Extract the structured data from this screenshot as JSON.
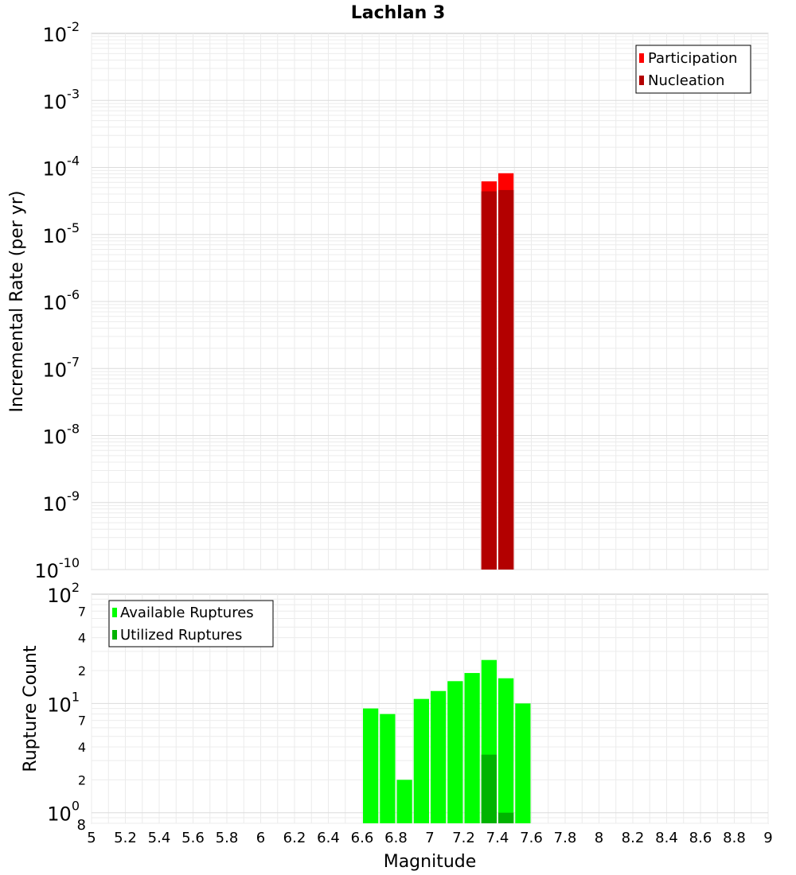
{
  "chart_data": [
    {
      "type": "bar",
      "title": "Lachlan 3",
      "xlabel": "",
      "ylabel": "Incremental Rate (per yr)",
      "yscale": "log",
      "ylim": [
        1e-10,
        0.01
      ],
      "xlim": [
        5,
        9
      ],
      "grid": true,
      "legend_position": "top-right",
      "y_tick_labels": [
        {
          "base": "10",
          "exp": "-2"
        },
        {
          "base": "10",
          "exp": "-3"
        },
        {
          "base": "10",
          "exp": "-4"
        },
        {
          "base": "10",
          "exp": "-5"
        },
        {
          "base": "10",
          "exp": "-6"
        },
        {
          "base": "10",
          "exp": "-7"
        },
        {
          "base": "10",
          "exp": "-8"
        },
        {
          "base": "10",
          "exp": "-9"
        },
        {
          "base": "10",
          "exp": "-10"
        }
      ],
      "x": [
        7.35,
        7.45
      ],
      "series": [
        {
          "name": "Participation",
          "color": "#ff0000",
          "values": [
            6.2e-05,
            8.2e-05
          ]
        },
        {
          "name": "Nucleation",
          "color": "#b30000",
          "values": [
            4.4e-05,
            4.6e-05
          ]
        }
      ]
    },
    {
      "type": "bar",
      "title": "",
      "xlabel": "Magnitude",
      "ylabel": "Rupture Count",
      "yscale": "log",
      "ylim": [
        0.8,
        100
      ],
      "xlim": [
        5,
        9
      ],
      "grid": true,
      "legend_position": "top-left",
      "x_tick_labels": [
        "5",
        "5.2",
        "5.4",
        "5.6",
        "5.8",
        "6",
        "6.2",
        "6.4",
        "6.6",
        "6.8",
        "7",
        "7.2",
        "7.4",
        "7.6",
        "7.8",
        "8",
        "8.2",
        "8.4",
        "8.6",
        "8.8",
        "9"
      ],
      "y_major_ticks": [
        {
          "value": 100,
          "base": "10",
          "exp": "2"
        },
        {
          "value": 10,
          "base": "10",
          "exp": "1"
        },
        {
          "value": 1,
          "base": "10",
          "exp": "0"
        }
      ],
      "y_minor_ticks": [
        {
          "value": 70,
          "label": "7"
        },
        {
          "value": 40,
          "label": "4"
        },
        {
          "value": 20,
          "label": "2"
        },
        {
          "value": 7,
          "label": "7"
        },
        {
          "value": 4,
          "label": "4"
        },
        {
          "value": 2,
          "label": "2"
        }
      ],
      "y_bottom_label": {
        "value": 0.8,
        "label": "8"
      },
      "x": [
        6.65,
        6.75,
        6.85,
        6.95,
        7.05,
        7.15,
        7.25,
        7.35,
        7.45,
        7.55
      ],
      "series": [
        {
          "name": "Available Ruptures",
          "color": "#00ff00",
          "values": [
            9,
            8,
            2,
            11,
            13,
            16,
            19,
            25,
            17,
            10
          ]
        },
        {
          "name": "Utilized Ruptures",
          "color": "#00b300",
          "values": [
            0,
            0,
            0,
            0,
            0,
            0,
            0,
            3.4,
            1,
            0
          ]
        }
      ]
    }
  ]
}
